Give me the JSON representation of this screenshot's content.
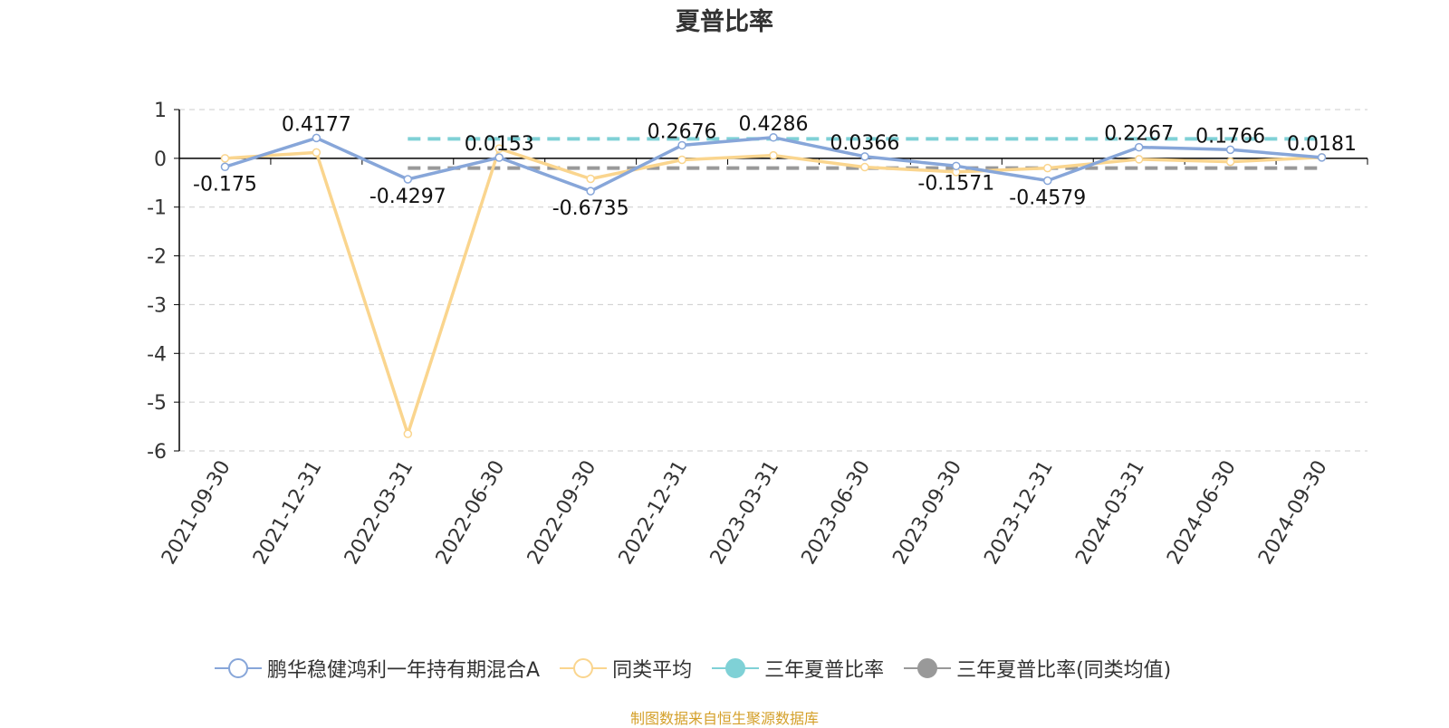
{
  "title": "夏普比率",
  "source_note": "制图数据来自恒生聚源数据库",
  "colors": {
    "fund": "#87a6d9",
    "peer": "#fad58e",
    "three_year": "#7fd1d6",
    "three_year_peer": "#999999",
    "axis": "#000000",
    "grid": "#cccccc"
  },
  "legend": [
    {
      "label": "鹏华稳健鸿利一年持有期混合A",
      "style": "hollow",
      "color": "#87a6d9"
    },
    {
      "label": "同类平均",
      "style": "hollow",
      "color": "#fad58e"
    },
    {
      "label": "三年夏普比率",
      "style": "filled",
      "color": "#7fd1d6"
    },
    {
      "label": "三年夏普比率(同类均值)",
      "style": "filled",
      "color": "#999999"
    }
  ],
  "chart_data": {
    "type": "line",
    "title": "夏普比率",
    "categories": [
      "2021-09-30",
      "2021-12-31",
      "2022-03-31",
      "2022-06-30",
      "2022-09-30",
      "2022-12-31",
      "2023-03-31",
      "2023-06-30",
      "2023-09-30",
      "2023-12-31",
      "2024-03-31",
      "2024-06-30",
      "2024-09-30"
    ],
    "ylim": [
      -6,
      1
    ],
    "yticks": [
      1,
      0,
      -1,
      -2,
      -3,
      -4,
      -5,
      -6
    ],
    "grid": true,
    "legend_position": "bottom",
    "series": [
      {
        "name": "鹏华稳健鸿利一年持有期混合A",
        "values": [
          -0.175,
          0.4177,
          -0.4297,
          0.0153,
          -0.6735,
          0.2676,
          0.4286,
          0.0366,
          -0.1571,
          -0.4579,
          0.2267,
          0.1766,
          0.0181
        ],
        "labels": [
          "-0.175",
          "0.4177",
          "-0.4297",
          "0.0153",
          "-0.6735",
          "0.2676",
          "0.4286",
          "0.0366",
          "-0.1571",
          "-0.4579",
          "0.2267",
          "0.1766",
          "0.0181"
        ]
      },
      {
        "name": "同类平均",
        "values": [
          0.0,
          0.12,
          -5.65,
          0.2,
          -0.42,
          -0.03,
          0.06,
          -0.18,
          -0.28,
          -0.2,
          -0.02,
          -0.07,
          0.02
        ]
      },
      {
        "name": "三年夏普比率",
        "style": "dashed",
        "values": [
          null,
          null,
          0.4,
          0.4,
          0.4,
          0.4,
          0.4,
          0.4,
          0.4,
          0.4,
          0.4,
          0.4,
          0.4
        ]
      },
      {
        "name": "三年夏普比率(同类均值)",
        "style": "dashed",
        "values": [
          null,
          null,
          -0.2,
          -0.2,
          -0.2,
          -0.2,
          -0.2,
          -0.2,
          -0.2,
          -0.2,
          -0.2,
          -0.2,
          -0.2
        ]
      }
    ]
  }
}
